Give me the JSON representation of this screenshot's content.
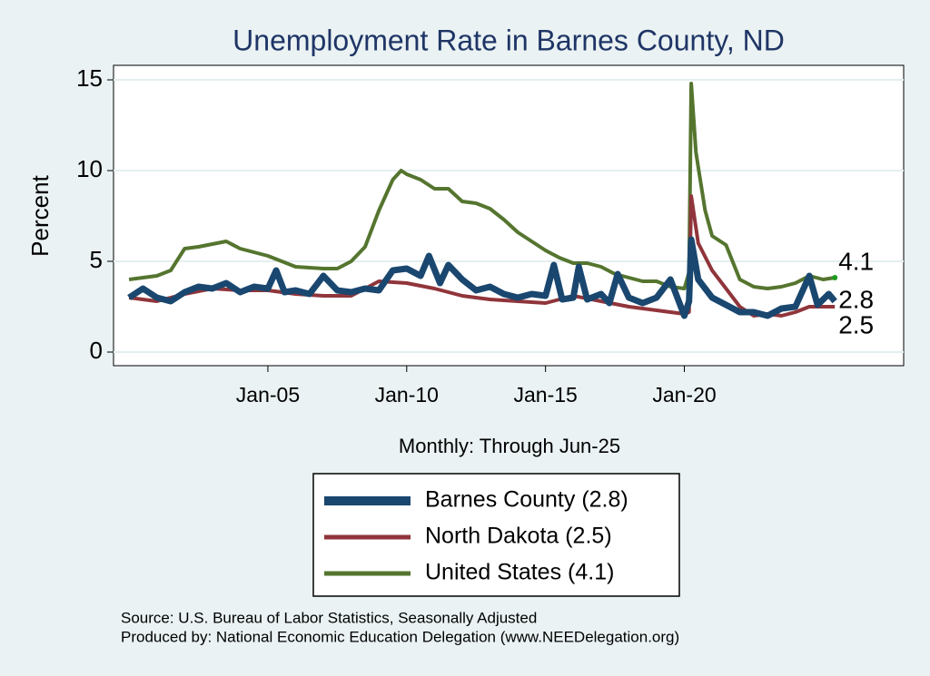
{
  "chart_data": {
    "type": "line",
    "title": "Unemployment Rate in Barnes  County, ND",
    "x_label": "Monthly: Through Jun-25",
    "y_label": "Percent",
    "notes": [
      "Source: U.S. Bureau of Labor Statistics, Seasonally Adjusted",
      "Produced by: National Economic Education Delegation (www.NEEDelegation.org)"
    ],
    "xlim": [
      1999.44,
      2027.9
    ],
    "xticks": [
      {
        "value": 2005,
        "label": "Jan-05"
      },
      {
        "value": 2010,
        "label": "Jan-10"
      },
      {
        "value": 2015,
        "label": "Jan-15"
      },
      {
        "value": 2020,
        "label": "Jan-20"
      }
    ],
    "ylim": [
      -0.75,
      15.8
    ],
    "yticks": [
      0,
      5,
      10,
      15
    ],
    "grid": true,
    "series": [
      {
        "name": "Barnes  County (2.8)",
        "color": "#1a476f",
        "x": [
          2000,
          2000.5,
          2001,
          2001.5,
          2002,
          2002.5,
          2003,
          2003.5,
          2004,
          2004.5,
          2005,
          2005.3,
          2005.6,
          2006,
          2006.5,
          2007,
          2007.5,
          2008,
          2008.5,
          2009,
          2009.5,
          2010,
          2010.5,
          2010.8,
          2011.2,
          2011.5,
          2012,
          2012.5,
          2013,
          2013.5,
          2014,
          2014.5,
          2015,
          2015.3,
          2015.6,
          2016,
          2016.2,
          2016.5,
          2017,
          2017.3,
          2017.6,
          2018,
          2018.5,
          2019,
          2019.5,
          2020,
          2020.17,
          2020.25,
          2020.5,
          2021,
          2021.5,
          2022,
          2022.5,
          2023,
          2023.5,
          2024,
          2024.5,
          2024.8,
          2025.2,
          2025.42
        ],
        "values": [
          3.0,
          3.5,
          3.0,
          2.8,
          3.3,
          3.6,
          3.5,
          3.8,
          3.3,
          3.6,
          3.5,
          4.5,
          3.3,
          3.4,
          3.2,
          4.2,
          3.4,
          3.3,
          3.5,
          3.4,
          4.5,
          4.6,
          4.2,
          5.3,
          3.8,
          4.8,
          4.0,
          3.4,
          3.6,
          3.2,
          3.0,
          3.2,
          3.1,
          4.8,
          2.9,
          3.0,
          4.7,
          2.9,
          3.2,
          2.7,
          4.3,
          3.0,
          2.7,
          3.0,
          4.0,
          2.0,
          2.8,
          6.2,
          4.0,
          3.0,
          2.6,
          2.2,
          2.2,
          2.0,
          2.4,
          2.5,
          4.2,
          2.6,
          3.2,
          2.8
        ]
      },
      {
        "name": "North Dakota (2.5)",
        "color": "#90353b",
        "x": [
          2000,
          2001,
          2002,
          2003,
          2004,
          2005,
          2006,
          2007,
          2008,
          2009,
          2010,
          2011,
          2012,
          2013,
          2014,
          2015,
          2016,
          2017,
          2018,
          2019,
          2020,
          2020.17,
          2020.25,
          2020.5,
          2021,
          2021.5,
          2022,
          2022.5,
          2023,
          2023.5,
          2024,
          2024.5,
          2025.42
        ],
        "values": [
          3.0,
          2.8,
          3.2,
          3.5,
          3.4,
          3.4,
          3.2,
          3.1,
          3.1,
          3.9,
          3.8,
          3.5,
          3.1,
          2.9,
          2.8,
          2.7,
          3.1,
          2.8,
          2.5,
          2.3,
          2.1,
          2.2,
          8.6,
          6.0,
          4.5,
          3.5,
          2.5,
          2.0,
          2.1,
          2.0,
          2.2,
          2.5,
          2.5
        ]
      },
      {
        "name": "United States (4.1)",
        "color": "#55752f",
        "x": [
          2000,
          2001,
          2001.5,
          2002,
          2002.5,
          2003.5,
          2004,
          2004.5,
          2005,
          2006,
          2007,
          2007.5,
          2008,
          2008.5,
          2009,
          2009.5,
          2009.8,
          2010,
          2010.5,
          2011,
          2011.5,
          2012,
          2012.5,
          2013,
          2013.5,
          2014,
          2014.5,
          2015,
          2015.5,
          2016,
          2016.5,
          2017,
          2017.5,
          2018,
          2018.5,
          2019,
          2019.5,
          2020,
          2020.17,
          2020.25,
          2020.42,
          2020.5,
          2020.75,
          2021,
          2021.5,
          2022,
          2022.5,
          2023,
          2023.5,
          2024,
          2024.5,
          2025,
          2025.42
        ],
        "values": [
          4.0,
          4.2,
          4.5,
          5.7,
          5.8,
          6.1,
          5.7,
          5.5,
          5.3,
          4.7,
          4.6,
          4.6,
          5.0,
          5.8,
          7.8,
          9.5,
          10.0,
          9.8,
          9.5,
          9.0,
          9.0,
          8.3,
          8.2,
          7.9,
          7.3,
          6.6,
          6.1,
          5.6,
          5.2,
          4.9,
          4.9,
          4.7,
          4.3,
          4.1,
          3.9,
          3.9,
          3.6,
          3.5,
          4.4,
          14.8,
          11.0,
          10.2,
          7.8,
          6.4,
          5.9,
          4.0,
          3.6,
          3.5,
          3.6,
          3.8,
          4.2,
          4.0,
          4.1
        ]
      }
    ]
  }
}
